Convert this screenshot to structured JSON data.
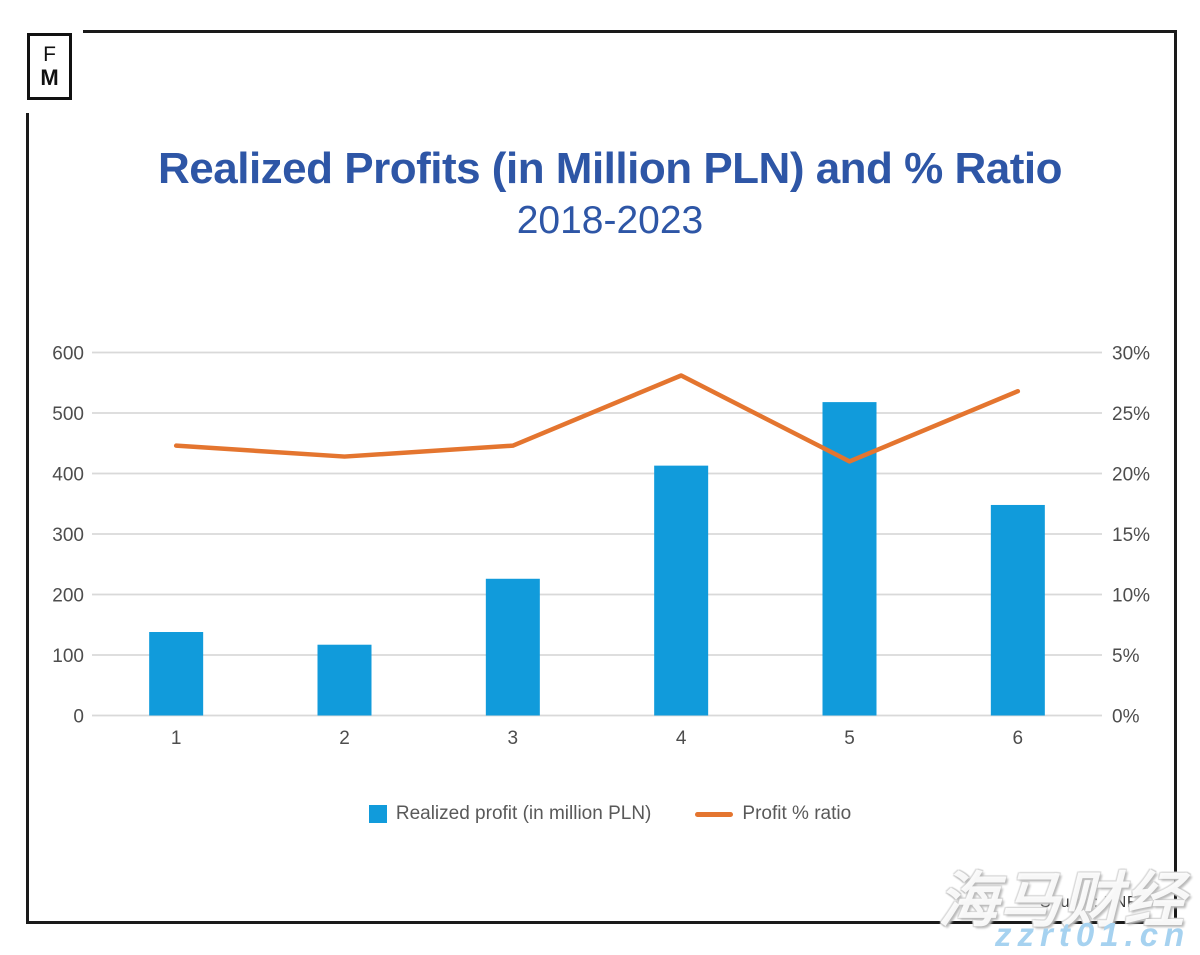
{
  "logo": {
    "top": "F",
    "bottom": "M"
  },
  "header": {
    "title": "Realized Profits (in Million PLN) and % Ratio",
    "subtitle": "2018-2023"
  },
  "legend": {
    "items": [
      {
        "label": "Realized profit (in million PLN)",
        "marker": "square",
        "color": "#119bdb"
      },
      {
        "label": "Profit % ratio",
        "marker": "line",
        "color": "#e4752f"
      }
    ]
  },
  "footer": {
    "source": "Source: KNF"
  },
  "watermark": {
    "text_cn": "海马财经",
    "text_url": "zzrt01.cn"
  },
  "colors": {
    "title_blue": "#2e56a6",
    "bar_blue": "#119bdb",
    "line_orange": "#e4752f",
    "gridline": "#d9d9d9",
    "axis_text": "#4d4d4d",
    "legend_text": "#595959",
    "frame": "#1a1a1a"
  },
  "chart_data": {
    "type": "combo-bar-line",
    "title": "Realized Profits (in Million PLN) and % Ratio",
    "subtitle": "2018-2023",
    "categories": [
      "1",
      "2",
      "3",
      "4",
      "5",
      "6"
    ],
    "series": [
      {
        "name": "Realized profit (in million PLN)",
        "type": "bar",
        "axis": "left",
        "color": "#119bdb",
        "values": [
          138,
          117,
          226,
          413,
          518,
          348
        ]
      },
      {
        "name": "Profit % ratio",
        "type": "line",
        "axis": "right",
        "color": "#e4752f",
        "values": [
          22.3,
          21.4,
          22.3,
          28.1,
          21.0,
          26.8
        ]
      }
    ],
    "left_axis": {
      "min": 0,
      "max": 600,
      "step": 100,
      "tick_labels": [
        "0",
        "100",
        "200",
        "300",
        "400",
        "500",
        "600"
      ]
    },
    "right_axis": {
      "min": 0,
      "max": 30,
      "step": 5,
      "tick_labels": [
        "0%",
        "5%",
        "10%",
        "15%",
        "20%",
        "25%",
        "30%"
      ]
    },
    "grid": true,
    "legend_position": "bottom"
  }
}
